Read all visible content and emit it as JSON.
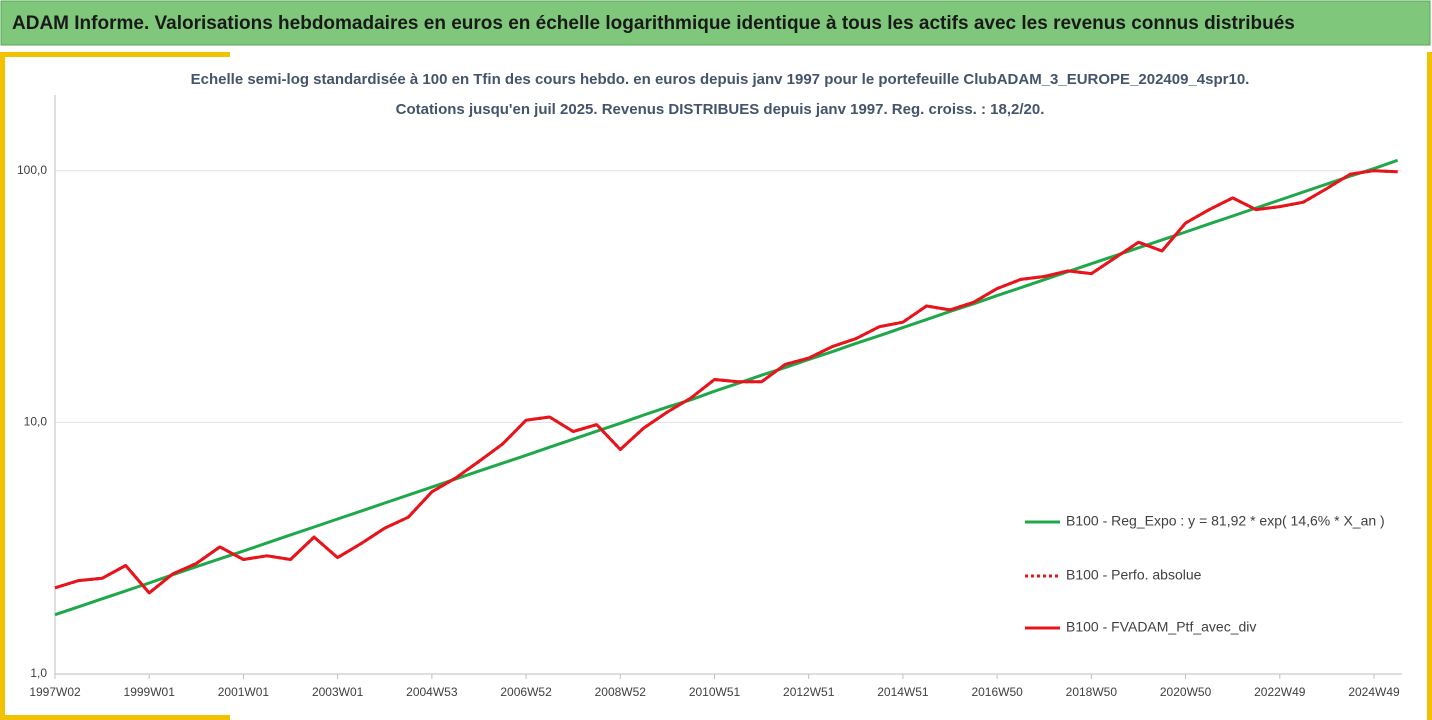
{
  "header": {
    "title": "ADAM Informe. Valorisations hebdomadaires en euros en échelle logarithmique identique à tous les actifs avec les revenus connus distribués"
  },
  "chart_data": {
    "type": "line",
    "title": "Echelle semi-log standardisée à 100 en Tfin des cours hebdo. en euros depuis janv 1997 pour le portefeuille ClubADAM_3_EUROPE_202409_4spr10.",
    "subtitle": "Cotations jusqu'en juil 2025. Revenus DISTRIBUES depuis janv 1997. Reg. croiss. : 18,2/20.",
    "yscale": "log",
    "ylim": [
      1,
      200
    ],
    "yticks": [
      {
        "value": 1,
        "label": "1,0"
      },
      {
        "value": 10,
        "label": "10,0"
      },
      {
        "value": 100,
        "label": "100,0"
      }
    ],
    "grid": true,
    "legend": "right",
    "categories": [
      "1997W02",
      null,
      null,
      null,
      "1999W01",
      null,
      null,
      null,
      "2001W01",
      null,
      null,
      null,
      "2003W01",
      null,
      null,
      null,
      "2004W53",
      null,
      null,
      null,
      "2006W52",
      null,
      null,
      null,
      "2008W52",
      null,
      null,
      null,
      "2010W51",
      null,
      null,
      null,
      "2012W51",
      null,
      null,
      null,
      "2014W51",
      null,
      null,
      null,
      "2016W50",
      null,
      null,
      null,
      "2018W50",
      null,
      null,
      null,
      "2020W50",
      null,
      null,
      null,
      "2022W49",
      null,
      null,
      null,
      "2024W49",
      null
    ],
    "series": [
      {
        "name": "B100 - Reg_Expo : y = 81,92 * exp( 14,6% *  X_an )",
        "color": "#1ea84a",
        "style": "solid",
        "values": [
          1.72,
          1.85,
          1.99,
          2.14,
          2.3,
          2.48,
          2.67,
          2.87,
          3.08,
          3.32,
          3.57,
          3.84,
          4.13,
          4.44,
          4.78,
          5.14,
          5.53,
          5.95,
          6.4,
          6.88,
          7.4,
          7.97,
          8.57,
          9.22,
          9.92,
          10.7,
          11.5,
          12.3,
          13.3,
          14.3,
          15.4,
          16.5,
          17.8,
          19.1,
          20.6,
          22.1,
          23.8,
          25.6,
          27.6,
          29.6,
          31.9,
          34.3,
          36.9,
          39.7,
          42.7,
          45.9,
          49.4,
          53.1,
          57.1,
          61.5,
          66.1,
          71.1,
          76.5,
          82.3,
          88.5,
          95.2,
          102,
          110
        ]
      },
      {
        "name": "B100 - Perfo. absolue",
        "color": "#e8141c",
        "style": "dotted",
        "values": [
          2.2,
          2.35,
          2.4,
          2.7,
          2.1,
          2.5,
          2.75,
          3.2,
          2.85,
          2.95,
          2.85,
          3.5,
          2.9,
          3.3,
          3.8,
          4.2,
          5.3,
          6.0,
          7.0,
          8.2,
          10.2,
          10.5,
          9.2,
          9.8,
          7.8,
          9.5,
          11.0,
          12.5,
          14.8,
          14.5,
          14.5,
          17.0,
          18.0,
          20.0,
          21.5,
          24.0,
          25.0,
          29.0,
          28.0,
          30.0,
          34.0,
          37.0,
          38.0,
          40.0,
          39.0,
          45.0,
          52.0,
          48.0,
          62.0,
          70.0,
          78.0,
          70.0,
          72.0,
          75.0,
          85.0,
          97.0,
          100.0,
          99.0
        ]
      },
      {
        "name": "B100 - FVADAM_Ptf_avec_div",
        "color": "#e8141c",
        "style": "solid",
        "values": [
          2.2,
          2.35,
          2.4,
          2.7,
          2.1,
          2.5,
          2.75,
          3.2,
          2.85,
          2.95,
          2.85,
          3.5,
          2.9,
          3.3,
          3.8,
          4.2,
          5.3,
          6.0,
          7.0,
          8.2,
          10.2,
          10.5,
          9.2,
          9.8,
          7.8,
          9.5,
          11.0,
          12.5,
          14.8,
          14.5,
          14.5,
          17.0,
          18.0,
          20.0,
          21.5,
          24.0,
          25.0,
          29.0,
          28.0,
          30.0,
          34.0,
          37.0,
          38.0,
          40.0,
          39.0,
          45.0,
          52.0,
          48.0,
          62.0,
          70.0,
          78.0,
          70.0,
          72.0,
          75.0,
          85.0,
          97.0,
          100.0,
          99.0
        ]
      }
    ]
  }
}
